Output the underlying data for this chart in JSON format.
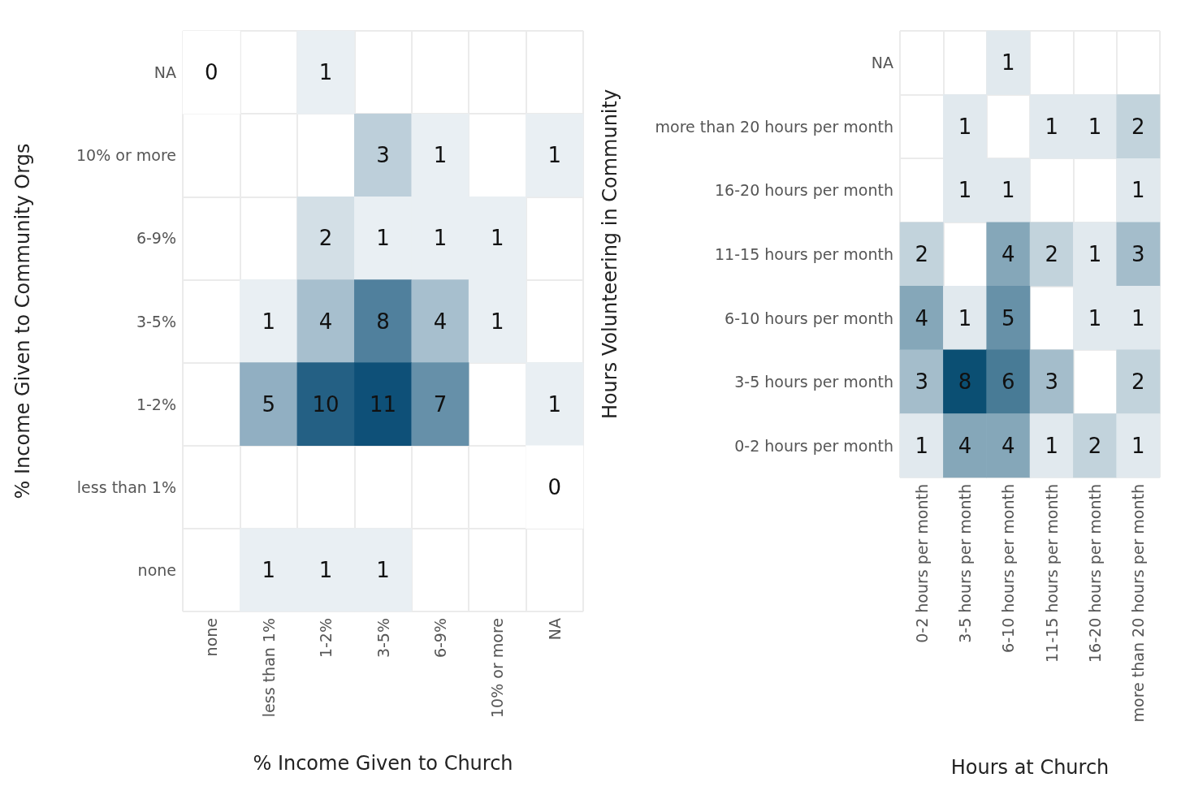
{
  "chart_data": [
    {
      "type": "heatmap",
      "xlabel": "% Income Given to Church",
      "ylabel": "% Income Given to Community Orgs",
      "color": "#0e5078",
      "grid": true,
      "data_labels": true,
      "categories": [
        "none",
        "less than 1%",
        "1-2%",
        "3-5%",
        "6-9%",
        "10% or more",
        "NA"
      ],
      "y_categories": [
        "NA",
        "10% or more",
        "6-9%",
        "3-5%",
        "1-2%",
        "less than 1%",
        "none"
      ],
      "cells": [
        [
          0,
          null,
          1,
          null,
          null,
          null,
          null
        ],
        [
          null,
          null,
          null,
          3,
          1,
          null,
          1
        ],
        [
          null,
          null,
          2,
          1,
          1,
          1,
          null
        ],
        [
          null,
          1,
          4,
          8,
          4,
          1,
          null
        ],
        [
          null,
          5,
          10,
          11,
          7,
          null,
          1
        ],
        [
          null,
          null,
          null,
          null,
          null,
          null,
          0
        ],
        [
          null,
          1,
          1,
          1,
          null,
          null,
          null
        ]
      ]
    },
    {
      "type": "heatmap",
      "xlabel": "Hours at Church",
      "ylabel": "Hours Volunteering in Community",
      "color": "#0b4f73",
      "grid": true,
      "data_labels": true,
      "categories": [
        "0-2 hours per month",
        "3-5 hours per month",
        "6-10 hours per month",
        "11-15 hours per month",
        "16-20 hours per month",
        "more than 20 hours per month"
      ],
      "y_categories": [
        "NA",
        "more than 20 hours per month",
        "16-20 hours per month",
        "11-15 hours per month",
        "6-10 hours per month",
        "3-5 hours per month",
        "0-2 hours per month"
      ],
      "cells": [
        [
          null,
          null,
          1,
          null,
          null,
          null
        ],
        [
          null,
          1,
          null,
          1,
          1,
          2
        ],
        [
          null,
          1,
          1,
          null,
          null,
          1
        ],
        [
          2,
          null,
          4,
          2,
          1,
          3
        ],
        [
          4,
          1,
          5,
          null,
          1,
          1
        ],
        [
          3,
          8,
          6,
          3,
          null,
          2
        ],
        [
          1,
          4,
          4,
          1,
          2,
          1
        ]
      ]
    }
  ]
}
